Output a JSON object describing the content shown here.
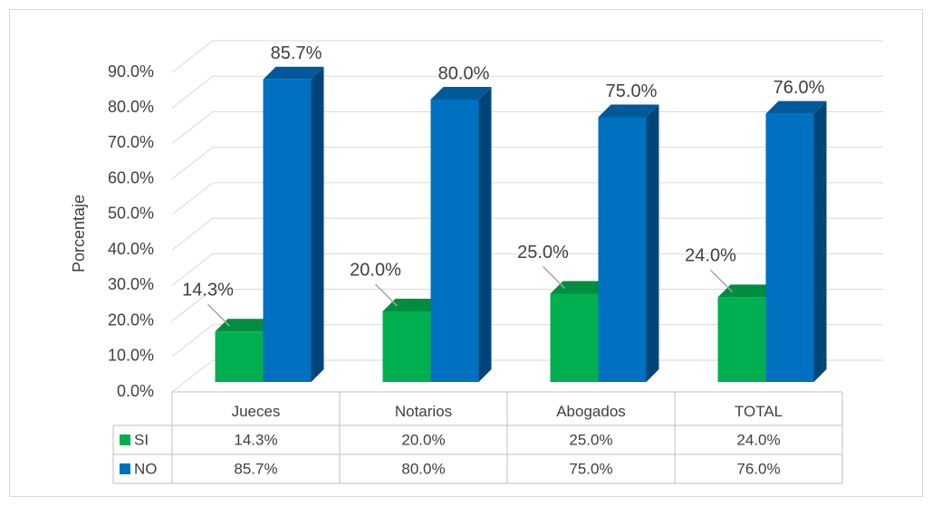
{
  "chart_data": {
    "type": "bar3d",
    "y_axis_label": "Porcentaje",
    "categories": [
      "Jueces",
      "Notarios",
      "Abogados",
      "TOTAL"
    ],
    "series": [
      {
        "name": "SI",
        "color": "#00b050",
        "values": [
          14.3,
          20.0,
          25.0,
          24.0
        ],
        "value_labels": [
          "14.3%",
          "20.0%",
          "25.0%",
          "24.0%"
        ]
      },
      {
        "name": "NO",
        "color": "#0070c0",
        "values": [
          85.7,
          80.0,
          75.0,
          76.0
        ],
        "value_labels": [
          "85.7%",
          "80.0%",
          "75.0%",
          "76.0%"
        ]
      }
    ],
    "ylim": [
      0,
      90
    ],
    "yticks": [
      {
        "value": 0,
        "label": "0.0%"
      },
      {
        "value": 10,
        "label": "10.0%"
      },
      {
        "value": 20,
        "label": "20.0%"
      },
      {
        "value": 30,
        "label": "30.0%"
      },
      {
        "value": 40,
        "label": "40.0%"
      },
      {
        "value": 50,
        "label": "50.0%"
      },
      {
        "value": 60,
        "label": "60.0%"
      },
      {
        "value": 70,
        "label": "70.0%"
      },
      {
        "value": 80,
        "label": "80.0%"
      },
      {
        "value": 90,
        "label": "90.0%"
      }
    ],
    "grid": true,
    "data_table": true
  }
}
